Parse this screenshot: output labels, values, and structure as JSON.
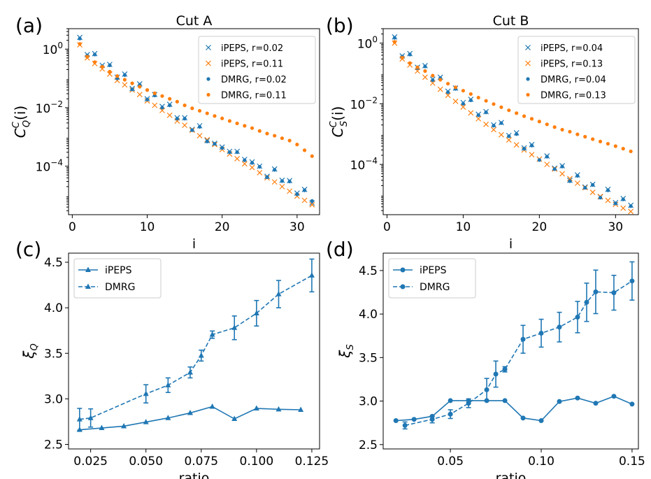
{
  "colors": {
    "blue": "#1f77b4",
    "orange": "#ff7f0e",
    "axis": "#000000",
    "legend_edge": "#cccccc"
  },
  "chart_data": [
    {
      "panel_label": "(a)",
      "type": "scatter",
      "title": "Cut A",
      "xlabel": "i",
      "ylabel": "C_Q^C(i)",
      "ylabel_parts": {
        "main": "C",
        "sub": "Q",
        "sup": "C",
        "arg": "(i)"
      },
      "yscale": "log",
      "xlim": [
        -0.5,
        33
      ],
      "ylim": [
        2.2e-06,
        5.0
      ],
      "xticks": [
        0,
        10,
        20,
        30
      ],
      "xtick_labels": [
        "0",
        "10",
        "20",
        "30"
      ],
      "yticks": [
        1,
        0.01,
        0.0001
      ],
      "ytick_labels": [
        {
          "base": "10",
          "exp": "0"
        },
        {
          "base": "10",
          "exp": "−2"
        },
        {
          "base": "10",
          "exp": "−4"
        }
      ],
      "legend_position": "upper right",
      "series": [
        {
          "name": "iPEPS, r=0.02",
          "marker": "x",
          "color": "#1f77b4",
          "x": [
            1,
            2,
            3,
            4,
            5,
            6,
            7,
            8,
            9,
            10,
            11,
            12,
            13,
            14,
            15,
            16,
            17,
            18,
            19,
            20,
            21,
            22,
            23,
            24,
            25,
            26,
            27,
            28,
            29,
            30,
            31,
            32
          ],
          "y": [
            2.5,
            0.65,
            0.7,
            0.28,
            0.3,
            0.11,
            0.14,
            0.045,
            0.065,
            0.02,
            0.028,
            0.011,
            0.013,
            0.0045,
            0.0045,
            0.0018,
            0.0024,
            0.00075,
            0.0006,
            0.00045,
            0.00032,
            0.00032,
            0.00017,
            0.00014,
            0.0001,
            4.5e-05,
            8e-05,
            3.3e-05,
            3.2e-05,
            1.2e-05,
            1.6e-05,
            5.5e-06
          ]
        },
        {
          "name": "iPEPS, r=0.11",
          "marker": "x",
          "color": "#ff7f0e",
          "x": [
            1,
            2,
            3,
            4,
            5,
            6,
            7,
            8,
            9,
            10,
            11,
            12,
            13,
            14,
            15,
            16,
            17,
            18,
            19,
            20,
            21,
            22,
            23,
            24,
            25,
            26,
            27,
            28,
            29,
            30,
            31,
            32
          ],
          "y": [
            1.4,
            0.5,
            0.32,
            0.21,
            0.14,
            0.085,
            0.06,
            0.04,
            0.028,
            0.017,
            0.012,
            0.008,
            0.0055,
            0.0035,
            0.0025,
            0.0017,
            0.0011,
            0.0008,
            0.00055,
            0.00037,
            0.00026,
            0.00018,
            0.00012,
            9e-05,
            6e-05,
            4e-05,
            2.9e-05,
            2e-05,
            1.4e-05,
            9.5e-06,
            6.8e-06,
            4.8e-06
          ]
        },
        {
          "name": "DMRG, r=0.02",
          "marker": "o",
          "color": "#1f77b4",
          "x": [
            1,
            2,
            3,
            4,
            5,
            6,
            7,
            8,
            9,
            10,
            11,
            12,
            13,
            14,
            15,
            16,
            17,
            18,
            19,
            20,
            21,
            22,
            23,
            24,
            25,
            26,
            27,
            28,
            29,
            30,
            31,
            32
          ],
          "y": [
            2.3,
            0.6,
            0.65,
            0.26,
            0.28,
            0.1,
            0.13,
            0.042,
            0.06,
            0.019,
            0.026,
            0.01,
            0.012,
            0.0042,
            0.0042,
            0.0017,
            0.0022,
            0.0007,
            0.00058,
            0.00042,
            0.0003,
            0.0003,
            0.00016,
            0.00013,
            9.5e-05,
            4.2e-05,
            7.5e-05,
            3.1e-05,
            3e-05,
            1.1e-05,
            1.5e-05,
            6.5e-06
          ]
        },
        {
          "name": "DMRG, r=0.11",
          "marker": "o",
          "color": "#ff7f0e",
          "x": [
            1,
            2,
            3,
            4,
            5,
            6,
            7,
            8,
            9,
            10,
            11,
            12,
            13,
            14,
            15,
            16,
            17,
            18,
            19,
            20,
            21,
            22,
            23,
            24,
            25,
            26,
            27,
            28,
            29,
            30,
            31,
            32
          ],
          "y": [
            1.5,
            0.55,
            0.36,
            0.25,
            0.17,
            0.12,
            0.09,
            0.068,
            0.052,
            0.04,
            0.031,
            0.025,
            0.02,
            0.016,
            0.012,
            0.0095,
            0.0078,
            0.0064,
            0.0052,
            0.0043,
            0.0035,
            0.0029,
            0.0024,
            0.002,
            0.0016,
            0.0013,
            0.0011,
            0.0009,
            0.00075,
            0.00055,
            0.00035,
            0.00022
          ]
        }
      ]
    },
    {
      "panel_label": "(b)",
      "type": "scatter",
      "title": "Cut B",
      "xlabel": "i",
      "ylabel": "C_S^C(i)",
      "ylabel_parts": {
        "main": "C",
        "sub": "S",
        "sup": "C",
        "arg": "(i)"
      },
      "yscale": "log",
      "xlim": [
        -0.5,
        33
      ],
      "ylim": [
        2.2e-06,
        3.0
      ],
      "xticks": [
        0,
        10,
        20,
        30
      ],
      "xtick_labels": [
        "0",
        "10",
        "20",
        "30"
      ],
      "yticks": [
        1,
        0.01,
        0.0001
      ],
      "ytick_labels": [
        {
          "base": "10",
          "exp": "0"
        },
        {
          "base": "10",
          "exp": "−2"
        },
        {
          "base": "10",
          "exp": "−4"
        }
      ],
      "legend_position": "upper right",
      "series": [
        {
          "name": "iPEPS, r=0.04",
          "marker": "x",
          "color": "#1f77b4",
          "x": [
            1,
            2,
            3,
            4,
            5,
            6,
            7,
            8,
            9,
            10,
            11,
            12,
            13,
            14,
            15,
            16,
            17,
            18,
            19,
            20,
            21,
            22,
            23,
            24,
            25,
            26,
            27,
            28,
            29,
            30,
            31,
            32
          ],
          "y": [
            1.6,
            0.38,
            0.45,
            0.16,
            0.18,
            0.065,
            0.075,
            0.026,
            0.033,
            0.011,
            0.014,
            0.0045,
            0.0055,
            0.002,
            0.0024,
            0.0009,
            0.0011,
            0.00035,
            0.00045,
            0.00015,
            0.00019,
            7.5e-05,
            9e-05,
            3e-05,
            4.5e-05,
            1.8e-05,
            2.2e-05,
            8.5e-06,
            1.5e-05,
            5.5e-06,
            7.5e-06,
            4.5e-06
          ]
        },
        {
          "name": "iPEPS, r=0.13",
          "marker": "x",
          "color": "#ff7f0e",
          "x": [
            1,
            2,
            3,
            4,
            5,
            6,
            7,
            8,
            9,
            10,
            11,
            12,
            13,
            14,
            15,
            16,
            17,
            18,
            19,
            20,
            21,
            22,
            23,
            24,
            25,
            26,
            27,
            28,
            29,
            30,
            31,
            32
          ],
          "y": [
            1.0,
            0.3,
            0.19,
            0.12,
            0.075,
            0.048,
            0.03,
            0.019,
            0.012,
            0.0078,
            0.005,
            0.0032,
            0.0021,
            0.0014,
            0.00095,
            0.00064,
            0.00044,
            0.0003,
            0.00021,
            0.00015,
            0.0001,
            7e-05,
            4.9e-05,
            3.4e-05,
            2.4e-05,
            1.7e-05,
            1.2e-05,
            8.8e-06,
            6.5e-06,
            4.8e-06,
            3.6e-06,
            2.8e-06
          ]
        },
        {
          "name": "DMRG, r=0.04",
          "marker": "o",
          "color": "#1f77b4",
          "x": [
            1,
            2,
            3,
            4,
            5,
            6,
            7,
            8,
            9,
            10,
            11,
            12,
            13,
            14,
            15,
            16,
            17,
            18,
            19,
            20,
            21,
            22,
            23,
            24,
            25,
            26,
            27,
            28,
            29,
            30,
            31,
            32
          ],
          "y": [
            1.5,
            0.36,
            0.42,
            0.15,
            0.17,
            0.06,
            0.07,
            0.024,
            0.031,
            0.01,
            0.013,
            0.0042,
            0.0052,
            0.0019,
            0.0023,
            0.00085,
            0.001,
            0.00033,
            0.00042,
            0.00014,
            0.00018,
            7e-05,
            8.5e-05,
            2.8e-05,
            4.2e-05,
            1.7e-05,
            2.1e-05,
            8e-06,
            1.4e-05,
            5.2e-06,
            7e-06,
            4.2e-06
          ]
        },
        {
          "name": "DMRG, r=0.13",
          "marker": "o",
          "color": "#ff7f0e",
          "x": [
            1,
            2,
            3,
            4,
            5,
            6,
            7,
            8,
            9,
            10,
            11,
            12,
            13,
            14,
            15,
            16,
            17,
            18,
            19,
            20,
            21,
            22,
            23,
            24,
            25,
            26,
            27,
            28,
            29,
            30,
            31,
            32
          ],
          "y": [
            1.1,
            0.33,
            0.22,
            0.16,
            0.12,
            0.085,
            0.062,
            0.046,
            0.035,
            0.027,
            0.021,
            0.016,
            0.0125,
            0.0098,
            0.0077,
            0.0061,
            0.0049,
            0.0039,
            0.0032,
            0.0026,
            0.0021,
            0.0017,
            0.0014,
            0.0012,
            0.00098,
            0.00082,
            0.00068,
            0.00057,
            0.00048,
            0.0004,
            0.00033,
            0.00027
          ]
        }
      ]
    },
    {
      "panel_label": "(c)",
      "type": "line",
      "title": "",
      "xlabel": "ratio",
      "ylabel": "ξ_Q",
      "ylabel_parts": {
        "main": "ξ",
        "sub": "Q"
      },
      "yscale": "linear",
      "xlim": [
        0.015,
        0.1285
      ],
      "ylim": [
        2.45,
        4.6
      ],
      "xticks": [
        0.025,
        0.05,
        0.075,
        0.1,
        0.125
      ],
      "xtick_labels": [
        "0.025",
        "0.050",
        "0.075",
        "0.100",
        "0.125"
      ],
      "yticks": [
        2.5,
        3.0,
        3.5,
        4.0,
        4.5
      ],
      "ytick_labels": [
        "2.5",
        "3.0",
        "3.5",
        "4.0",
        "4.5"
      ],
      "legend_position": "upper left",
      "marker": "^",
      "series": [
        {
          "name": "iPEPS",
          "linestyle": "solid",
          "color": "#1f77b4",
          "x": [
            0.02,
            0.03,
            0.04,
            0.05,
            0.06,
            0.07,
            0.08,
            0.09,
            0.1,
            0.11,
            0.12
          ],
          "y": [
            2.66,
            2.68,
            2.7,
            2.745,
            2.79,
            2.845,
            2.915,
            2.78,
            2.895,
            2.885,
            2.88
          ]
        },
        {
          "name": "DMRG",
          "linestyle": "dashed",
          "color": "#1f77b4",
          "x": [
            0.02,
            0.025,
            0.05,
            0.06,
            0.07,
            0.075,
            0.08,
            0.09,
            0.1,
            0.11,
            0.125
          ],
          "y": [
            2.775,
            2.79,
            3.055,
            3.15,
            3.29,
            3.475,
            3.705,
            3.78,
            3.94,
            4.15,
            4.355
          ],
          "yerr": [
            0.12,
            0.1,
            0.1,
            0.08,
            0.06,
            0.06,
            0.04,
            0.13,
            0.14,
            0.15,
            0.18
          ]
        }
      ]
    },
    {
      "panel_label": "(d)",
      "type": "line",
      "title": "",
      "xlabel": "ratio",
      "ylabel": "ξ_S",
      "ylabel_parts": {
        "main": "ξ",
        "sub": "S"
      },
      "yscale": "linear",
      "xlim": [
        0.013,
        0.1535
      ],
      "ylim": [
        2.45,
        4.7
      ],
      "xticks": [
        0.05,
        0.1,
        0.15
      ],
      "xtick_labels": [
        "0.05",
        "0.10",
        "0.15"
      ],
      "yticks": [
        2.5,
        3.0,
        3.5,
        4.0,
        4.5
      ],
      "ytick_labels": [
        "2.5",
        "3.0",
        "3.5",
        "4.0",
        "4.5"
      ],
      "legend_position": "upper left",
      "marker": "o",
      "series": [
        {
          "name": "iPEPS",
          "linestyle": "solid",
          "color": "#1f77b4",
          "x": [
            0.02,
            0.03,
            0.04,
            0.05,
            0.06,
            0.07,
            0.08,
            0.09,
            0.1,
            0.11,
            0.12,
            0.13,
            0.14,
            0.15
          ],
          "y": [
            2.775,
            2.79,
            2.825,
            3.005,
            3.005,
            3.005,
            3.005,
            2.805,
            2.775,
            2.995,
            3.035,
            2.975,
            3.055,
            2.965
          ]
        },
        {
          "name": "DMRG",
          "linestyle": "dashed",
          "color": "#1f77b4",
          "x": [
            0.025,
            0.04,
            0.05,
            0.06,
            0.07,
            0.075,
            0.08,
            0.09,
            0.1,
            0.11,
            0.12,
            0.125,
            0.13,
            0.14,
            0.15
          ],
          "y": [
            2.72,
            2.79,
            2.85,
            2.975,
            3.13,
            3.31,
            3.365,
            3.71,
            3.78,
            3.85,
            3.965,
            4.135,
            4.255,
            4.245,
            4.38
          ],
          "yerr": [
            0.04,
            0.04,
            0.05,
            0.05,
            0.13,
            0.15,
            0.03,
            0.16,
            0.16,
            0.17,
            0.18,
            0.22,
            0.25,
            0.2,
            0.22
          ]
        }
      ]
    }
  ]
}
